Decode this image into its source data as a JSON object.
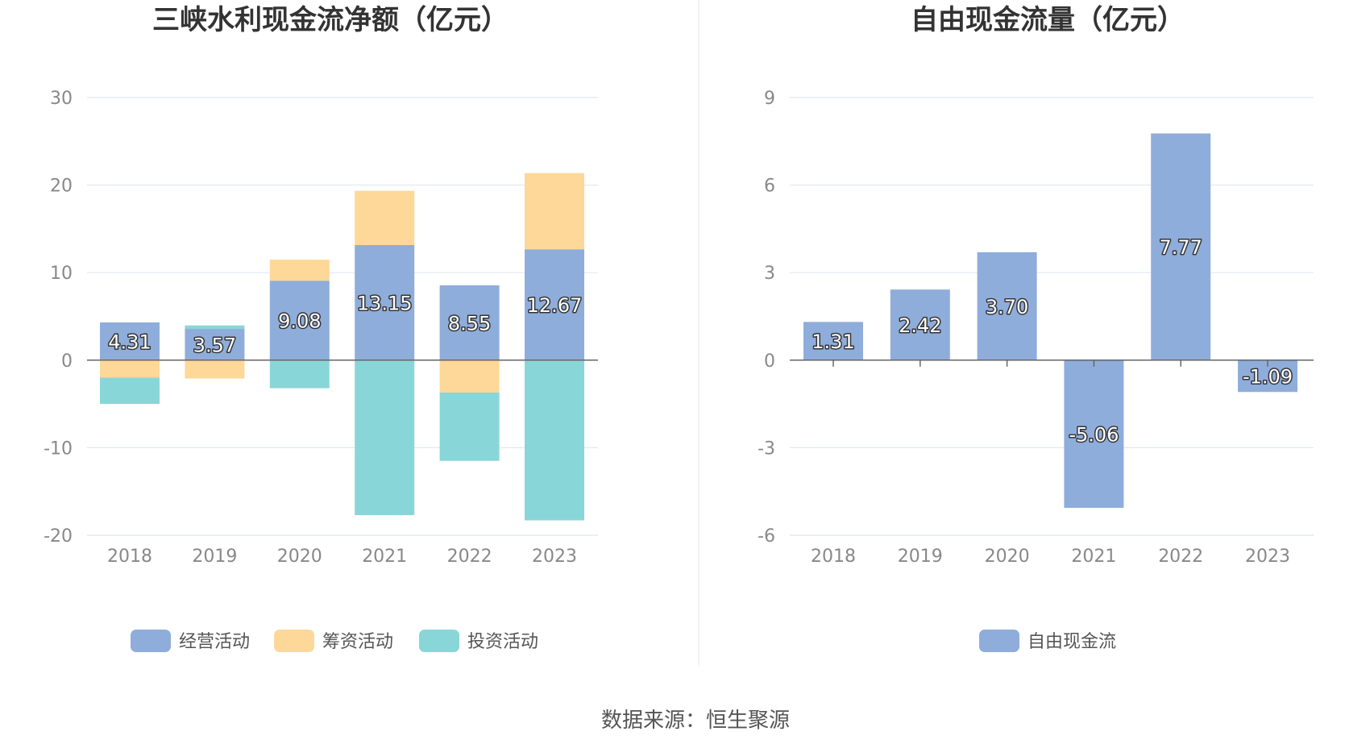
{
  "source_text": "数据来源：恒生聚源",
  "chart_data": [
    {
      "type": "bar",
      "stacked": true,
      "title": "三峡水利现金流净额（亿元）",
      "categories": [
        "2018",
        "2019",
        "2020",
        "2021",
        "2022",
        "2023"
      ],
      "ylim": [
        -20,
        30
      ],
      "yticks": [
        30,
        20,
        10,
        0,
        -10,
        -20
      ],
      "grid": true,
      "legend_position": "bottom",
      "series": [
        {
          "name": "经营活动",
          "color": "#8fadda",
          "values": [
            4.31,
            3.57,
            9.08,
            13.15,
            8.55,
            12.67
          ],
          "labels": [
            "4.31",
            "3.57",
            "9.08",
            "13.15",
            "8.55",
            "12.67"
          ]
        },
        {
          "name": "筹资活动",
          "color": "#fdd899",
          "values": [
            -2.0,
            -2.1,
            2.4,
            6.2,
            -3.7,
            8.7
          ]
        },
        {
          "name": "投资活动",
          "color": "#89d6d9",
          "values": [
            -3.0,
            0.4,
            -3.2,
            -17.7,
            -7.8,
            -18.3
          ]
        }
      ]
    },
    {
      "type": "bar",
      "title": "自由现金流量（亿元）",
      "categories": [
        "2018",
        "2019",
        "2020",
        "2021",
        "2022",
        "2023"
      ],
      "ylim": [
        -6,
        9
      ],
      "yticks": [
        9,
        6,
        3,
        0,
        -3,
        -6
      ],
      "grid": true,
      "legend_position": "bottom",
      "series": [
        {
          "name": "自由现金流",
          "color": "#8fadda",
          "values": [
            1.31,
            2.42,
            3.7,
            -5.06,
            7.77,
            -1.09
          ],
          "labels": [
            "1.31",
            "2.42",
            "3.70",
            "-5.06",
            "7.77",
            "-1.09"
          ]
        }
      ]
    }
  ]
}
